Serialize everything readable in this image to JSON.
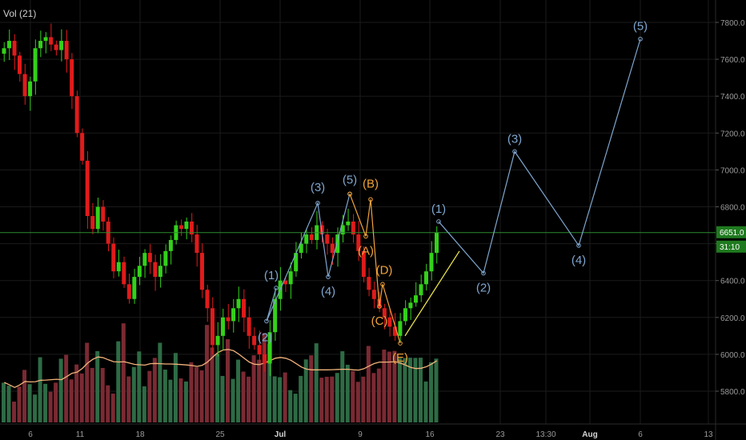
{
  "indicator_label": "Vol (21)",
  "colors": {
    "background": "#000000",
    "grid": "#1b1b1b",
    "up": "#33d11a",
    "down": "#e01b1b",
    "vol_up": "#2e6b45",
    "vol_down": "#7a2a33",
    "vol_ma": "#f2b27a",
    "wave_blue": "#7fa6cf",
    "wave_orange": "#f0a23a",
    "trend_yellow": "#e8e24a",
    "hline": "#2e8b2e",
    "price_tag": "#1f7a1f",
    "axis_text": "#9a9a9a"
  },
  "chart_data": {
    "type": "candlestick",
    "title": "",
    "xlabel": "",
    "ylabel": "",
    "x_ticks": [
      "6",
      "11",
      "18",
      "25",
      "Jul",
      "9",
      "16",
      "23",
      "13:30",
      "Aug",
      "6",
      "13"
    ],
    "y_ticks": [
      "5800.0",
      "6000.0",
      "6200.0",
      "6400.0",
      "6600.0",
      "6800.0",
      "7000.0",
      "7200.0",
      "7400.0",
      "7600.0",
      "7800.0"
    ],
    "ylim": [
      5640,
      7880
    ],
    "grid": true,
    "current_price": "6651.0",
    "countdown": "31:10",
    "horizontal_line_price": 6660,
    "waves": [
      {
        "name": "blue_primary",
        "points": [
          {
            "label": "(1)",
            "price": 6360
          },
          {
            "label": "(2)",
            "price": 6180
          },
          {
            "label": "(3)",
            "price": 6820
          },
          {
            "label": "(4)",
            "price": 6420
          },
          {
            "label": "(5)",
            "price": 6870
          }
        ]
      },
      {
        "name": "orange_correction",
        "points": [
          {
            "label": "(5)",
            "price": 6870
          },
          {
            "label": "(A)",
            "price": 6640
          },
          {
            "label": "(B)",
            "price": 6840
          },
          {
            "label": "(C)",
            "price": 6260
          },
          {
            "label": "(D)",
            "price": 6380
          },
          {
            "label": "(E)",
            "price": 6060
          }
        ]
      },
      {
        "name": "blue_projection",
        "points": [
          {
            "label": "(1)",
            "price": 6720
          },
          {
            "label": "(2)",
            "price": 6440
          },
          {
            "label": "(3)",
            "price": 7100
          },
          {
            "label": "(4)",
            "price": 6590
          },
          {
            "label": "(5)",
            "price": 7710
          }
        ]
      }
    ],
    "candles_approx": [
      7660,
      7700,
      7620,
      7520,
      7400,
      7480,
      7660,
      7700,
      7720,
      7680,
      7650,
      7700,
      7600,
      7400,
      7200,
      7050,
      6750,
      6680,
      6800,
      6720,
      6600,
      6450,
      6500,
      6380,
      6300,
      6420,
      6480,
      6550,
      6500,
      6420,
      6480,
      6560,
      6620,
      6700,
      6680,
      6720,
      6650,
      6550,
      6350,
      6250,
      6050,
      6100,
      6200,
      6180,
      6250,
      6300,
      6200,
      6100,
      6050,
      6000,
      5950,
      6120,
      6300,
      6400,
      6380,
      6450,
      6550,
      6600,
      6650,
      6620,
      6700,
      6650,
      6600,
      6550,
      6650,
      6700,
      6720,
      6650,
      6560,
      6420,
      6350,
      6300,
      6250,
      6200,
      6150,
      6100,
      6180,
      6250,
      6280,
      6320,
      6380,
      6450,
      6550,
      6660
    ],
    "volume_approx": [
      40,
      35,
      30,
      45,
      55,
      38,
      42,
      50,
      36,
      33,
      48,
      52,
      60,
      65,
      58,
      62,
      70,
      75,
      68,
      55,
      50,
      45,
      60,
      72,
      66,
      58,
      52,
      48,
      55,
      62,
      70,
      64,
      58,
      50,
      46,
      52,
      58,
      64,
      72,
      80,
      85,
      78,
      70,
      62,
      55,
      48,
      52,
      58,
      62,
      68,
      74,
      70,
      65,
      58,
      52,
      48,
      45,
      50,
      55,
      60,
      58,
      52,
      48,
      46,
      52,
      56,
      60,
      54,
      50,
      58,
      64,
      70,
      66,
      60,
      55,
      52,
      48,
      50,
      54,
      58,
      62,
      66,
      70,
      72
    ]
  }
}
